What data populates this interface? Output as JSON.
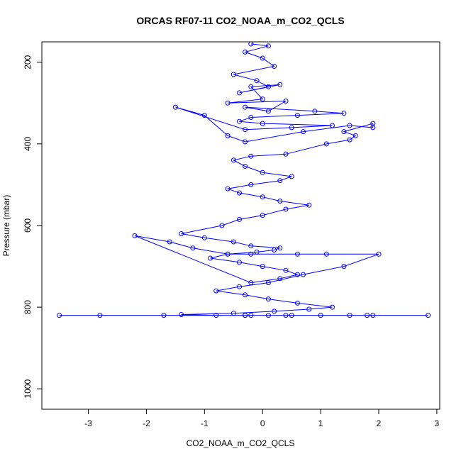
{
  "chart_data": {
    "type": "scatter",
    "title": "ORCAS RF07-11 CO2_NOAA_m_CO2_QCLS",
    "xlabel": "CO2_NOAA_m_CO2_QCLS",
    "ylabel": "Pressure (mbar)",
    "xlim": [
      -3.8,
      3.05
    ],
    "ylim": [
      1050,
      150
    ],
    "y_reversed": true,
    "x_ticks": [
      -3,
      -2,
      -1,
      0,
      1,
      2,
      3
    ],
    "y_ticks": [
      200,
      400,
      600,
      800,
      1000
    ],
    "grid": false,
    "legend": "none",
    "marker": "open-circle",
    "connect_points": true,
    "color": "#0000ff",
    "series": [
      {
        "x": [
          -0.2,
          0.1,
          -0.3,
          0.0,
          0.2,
          -0.5,
          -0.1,
          0.1,
          -0.4,
          0.3,
          -0.2,
          0.0,
          -0.6,
          0.4,
          0.1,
          -0.3,
          0.9,
          1.4,
          0.6,
          -0.2,
          -0.4,
          0.0,
          1.2,
          0.5,
          -0.3,
          -1.5,
          -1.0,
          -0.6,
          -0.3,
          0.7,
          1.5,
          1.9,
          1.9,
          1.4,
          1.6,
          1.5,
          1.1,
          0.4,
          -0.2,
          -0.5,
          -0.3,
          0.0,
          0.5,
          0.3,
          -0.2,
          -0.6,
          -0.4,
          0.0,
          0.3,
          0.8,
          0.4,
          0.0,
          -0.4,
          -0.7,
          -1.4,
          -1.0,
          -0.5,
          -0.2,
          0.3,
          0.2,
          -0.1,
          -0.6,
          -0.9,
          -0.4,
          0.0,
          0.4,
          0.6,
          0.3,
          -0.2,
          -2.2,
          -1.6,
          -1.2,
          -0.6,
          -0.2,
          0.6,
          1.1,
          2.0,
          1.4,
          0.7,
          0.1,
          -0.4,
          -0.8,
          -0.3,
          0.1,
          0.6,
          1.2,
          0.8,
          0.2,
          -0.5,
          -1.4,
          -0.8,
          -0.2,
          0.4,
          1.0,
          1.5,
          1.8,
          -0.3,
          -1.7,
          -2.8,
          -3.5,
          2.85,
          1.9,
          0.5,
          -0.3,
          0.1
        ],
        "y": [
          155,
          160,
          175,
          190,
          210,
          230,
          245,
          260,
          275,
          255,
          260,
          290,
          300,
          295,
          320,
          310,
          320,
          325,
          330,
          335,
          345,
          350,
          355,
          360,
          365,
          310,
          330,
          380,
          395,
          370,
          355,
          360,
          350,
          370,
          380,
          390,
          400,
          425,
          430,
          440,
          455,
          470,
          480,
          490,
          500,
          510,
          520,
          530,
          540,
          550,
          560,
          575,
          585,
          600,
          620,
          630,
          640,
          650,
          655,
          660,
          665,
          670,
          680,
          690,
          700,
          710,
          720,
          730,
          740,
          625,
          640,
          655,
          670,
          670,
          670,
          670,
          670,
          700,
          720,
          740,
          750,
          760,
          770,
          780,
          790,
          800,
          805,
          810,
          815,
          818,
          820,
          820,
          820,
          820,
          820,
          820,
          820,
          820,
          820,
          820,
          820,
          820,
          820,
          820,
          820
        ]
      }
    ]
  }
}
